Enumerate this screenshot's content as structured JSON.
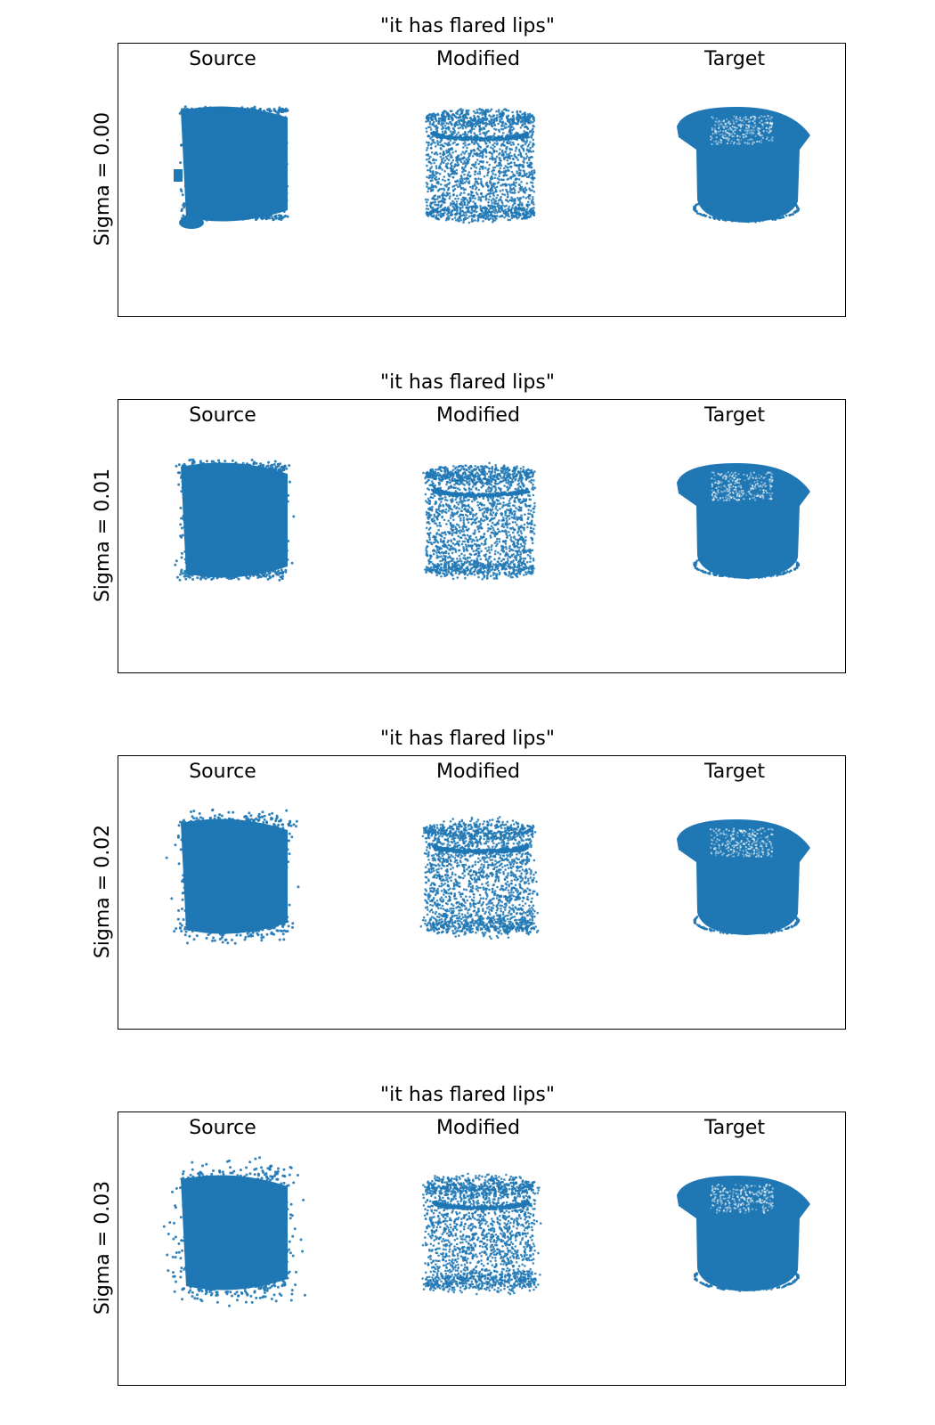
{
  "figure": {
    "point_color": "#1f77b4",
    "columns": [
      "Source",
      "Modified",
      "Target"
    ],
    "rows": [
      {
        "title": "\"it has flared lips\"",
        "row_label": "Sigma = 0.00",
        "sigma": 0.0
      },
      {
        "title": "\"it has flared lips\"",
        "row_label": "Sigma = 0.01",
        "sigma": 0.01
      },
      {
        "title": "\"it has flared lips\"",
        "row_label": "Sigma = 0.02",
        "sigma": 0.02
      },
      {
        "title": "\"it has flared lips\"",
        "row_label": "Sigma = 0.03",
        "sigma": 0.03
      }
    ]
  }
}
